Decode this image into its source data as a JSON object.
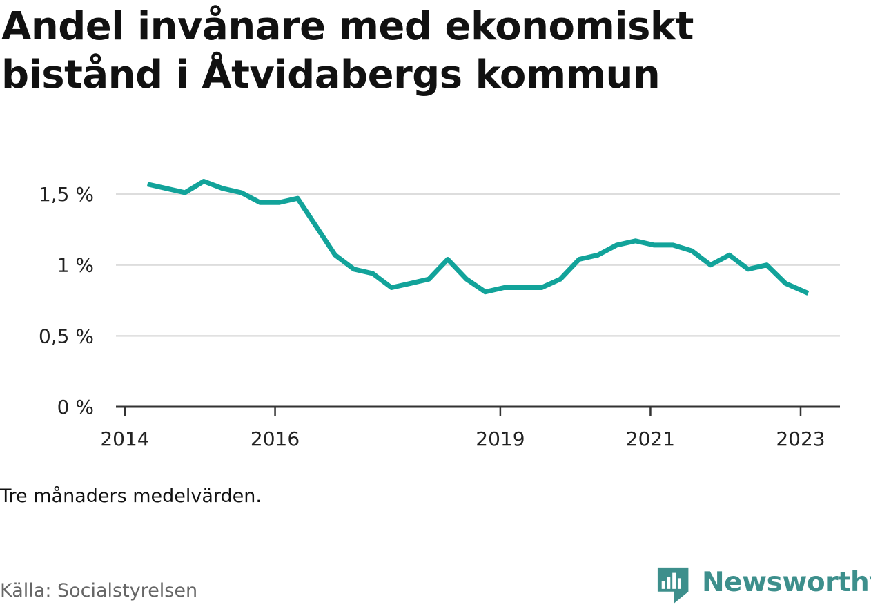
{
  "title": "Andel invånare med ekonomiskt bistånd i Åtvidabergs kommun",
  "note": "Tre månaders medelvärden.",
  "source": "Källa: Socialstyrelsen",
  "brand": {
    "name": "Newsworthy",
    "icon": "newsworthy-logo-icon",
    "color": "#3d8f8c"
  },
  "colors": {
    "line": "#12a39a",
    "grid": "#dddddd",
    "axis": "#333333"
  },
  "chart_data": {
    "type": "line",
    "title": "Andel invånare med ekonomiskt bistånd i Åtvidabergs kommun",
    "xlabel": "",
    "ylabel": "",
    "ylim": [
      0,
      1.5
    ],
    "y_ticks": [
      0,
      0.5,
      1,
      1.5
    ],
    "y_tick_labels": [
      "0 %",
      "0,5 %",
      "1 %",
      "1,5 %"
    ],
    "xlim": [
      2014,
      2023.4
    ],
    "x_ticks": [
      2014,
      2016,
      2019,
      2021,
      2023
    ],
    "x_tick_labels": [
      "2014",
      "2016",
      "2019",
      "2021",
      "2023"
    ],
    "grid": true,
    "legend": "none",
    "series": [
      {
        "values": [
          {
            "x": 2014.3,
            "y": 1.57
          },
          {
            "x": 2014.55,
            "y": 1.54
          },
          {
            "x": 2014.8,
            "y": 1.51
          },
          {
            "x": 2015.05,
            "y": 1.59
          },
          {
            "x": 2015.3,
            "y": 1.54
          },
          {
            "x": 2015.55,
            "y": 1.51
          },
          {
            "x": 2015.8,
            "y": 1.44
          },
          {
            "x": 2016.05,
            "y": 1.44
          },
          {
            "x": 2016.3,
            "y": 1.47
          },
          {
            "x": 2016.55,
            "y": 1.27
          },
          {
            "x": 2016.8,
            "y": 1.07
          },
          {
            "x": 2017.05,
            "y": 0.97
          },
          {
            "x": 2017.3,
            "y": 0.94
          },
          {
            "x": 2017.55,
            "y": 0.84
          },
          {
            "x": 2017.8,
            "y": 0.87
          },
          {
            "x": 2018.05,
            "y": 0.9
          },
          {
            "x": 2018.3,
            "y": 1.04
          },
          {
            "x": 2018.55,
            "y": 0.9
          },
          {
            "x": 2018.8,
            "y": 0.81
          },
          {
            "x": 2019.05,
            "y": 0.84
          },
          {
            "x": 2019.3,
            "y": 0.84
          },
          {
            "x": 2019.55,
            "y": 0.84
          },
          {
            "x": 2019.8,
            "y": 0.9
          },
          {
            "x": 2020.05,
            "y": 1.04
          },
          {
            "x": 2020.3,
            "y": 1.07
          },
          {
            "x": 2020.55,
            "y": 1.14
          },
          {
            "x": 2020.8,
            "y": 1.17
          },
          {
            "x": 2021.05,
            "y": 1.14
          },
          {
            "x": 2021.3,
            "y": 1.14
          },
          {
            "x": 2021.55,
            "y": 1.1
          },
          {
            "x": 2021.8,
            "y": 1.0
          },
          {
            "x": 2022.05,
            "y": 1.07
          },
          {
            "x": 2022.3,
            "y": 0.97
          },
          {
            "x": 2022.55,
            "y": 1.0
          },
          {
            "x": 2022.8,
            "y": 0.87
          },
          {
            "x": 2023.1,
            "y": 0.8
          }
        ]
      }
    ]
  }
}
